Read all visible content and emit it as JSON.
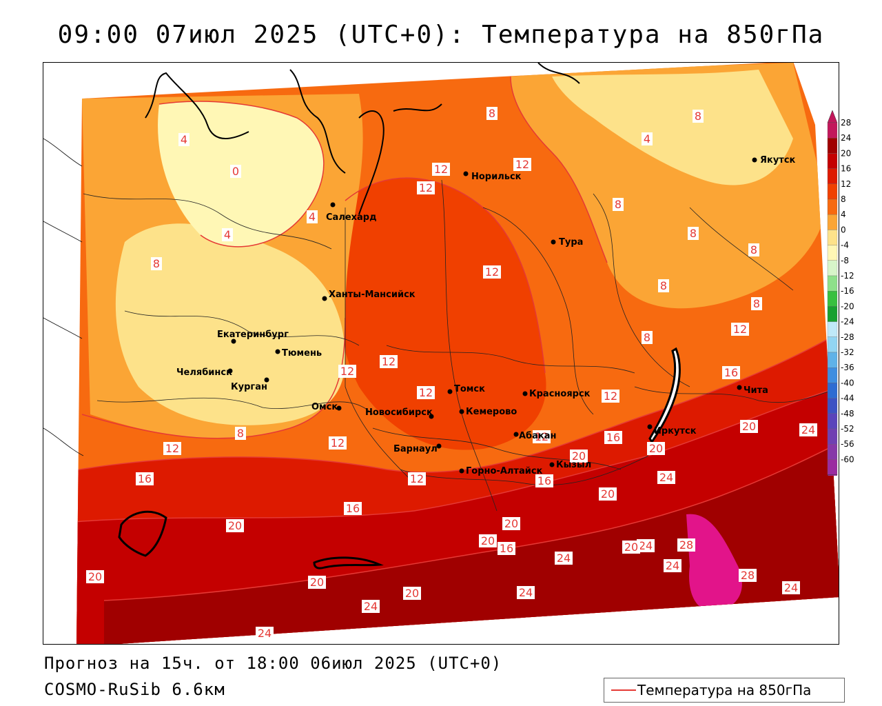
{
  "header": {
    "title": "09:00 07июл 2025 (UTC+0): Температура на 850гПа"
  },
  "footer": {
    "forecast": "Прогноз на 15ч. от 18:00 06июл 2025 (UTC+0)",
    "model": "COSMO-RuSib 6.6км"
  },
  "legend": {
    "label": "Температура на 850гПа",
    "line_color": "#e53935"
  },
  "colorbar": {
    "labels": [
      "28",
      "24",
      "20",
      "16",
      "12",
      "8",
      "4",
      "0",
      "-4",
      "-8",
      "-12",
      "-16",
      "-20",
      "-24",
      "-28",
      "-32",
      "-36",
      "-40",
      "-44",
      "-48",
      "-52",
      "-56",
      "-60"
    ],
    "colors": [
      "#c2185b",
      "#a00000",
      "#c40000",
      "#dd1a00",
      "#f04000",
      "#f76a10",
      "#fba535",
      "#fde28a",
      "#fff7b5",
      "#d7f5c9",
      "#8ee08a",
      "#38c040",
      "#18a030",
      "#bfe9f8",
      "#92d5f2",
      "#5fb2e8",
      "#3e8ee0",
      "#2e6cd2",
      "#3d52c4",
      "#5a44bb",
      "#7040b2",
      "#8638a8",
      "#9a2ca0"
    ]
  },
  "cities": [
    {
      "name": "Норильск"
    },
    {
      "name": "Якутск"
    },
    {
      "name": "Салехард"
    },
    {
      "name": "Тура"
    },
    {
      "name": "Ханты-Мансийск"
    },
    {
      "name": "Екатеринбург"
    },
    {
      "name": "Тюмень"
    },
    {
      "name": "Челябинск"
    },
    {
      "name": "Курган"
    },
    {
      "name": "Омск"
    },
    {
      "name": "Новосибирск"
    },
    {
      "name": "Томск"
    },
    {
      "name": "Кемерово"
    },
    {
      "name": "Красноярск"
    },
    {
      "name": "Барнаул"
    },
    {
      "name": "Абакан"
    },
    {
      "name": "Горно-Алтайск"
    },
    {
      "name": "Кызыл"
    },
    {
      "name": "Иркутск"
    },
    {
      "name": "Чита"
    }
  ],
  "isotherm_labels": [
    "4",
    "0",
    "4",
    "4",
    "8",
    "8",
    "12",
    "12",
    "12",
    "8",
    "4",
    "8",
    "8",
    "8",
    "8",
    "8",
    "12",
    "16",
    "8",
    "12",
    "12",
    "12",
    "12",
    "12",
    "16",
    "12",
    "16",
    "20",
    "24",
    "20",
    "20",
    "24",
    "16",
    "20",
    "20",
    "16",
    "20",
    "24",
    "28",
    "24",
    "28",
    "24",
    "24",
    "20",
    "20",
    "24",
    "24",
    "20",
    "24",
    "20",
    "12",
    "16",
    "20",
    "8",
    "12",
    "12"
  ]
}
